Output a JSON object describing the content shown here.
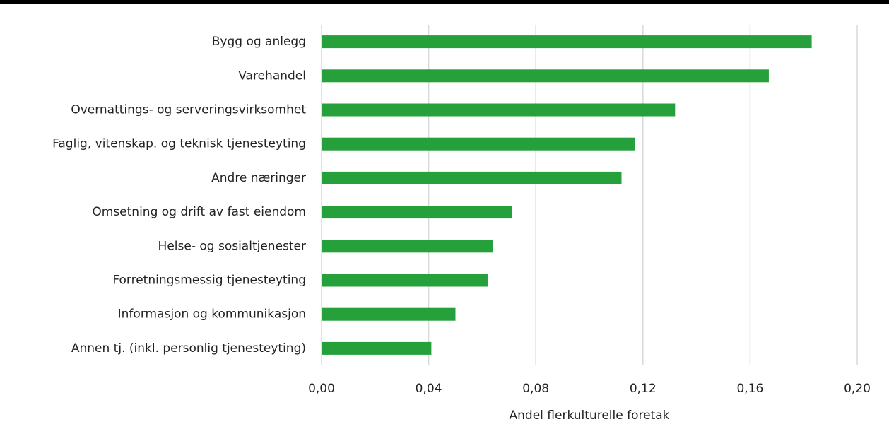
{
  "chart_data": {
    "type": "barh",
    "x_label": "Andel flerkulturelle foretak",
    "categories": [
      "Bygg og anlegg",
      "Varehandel",
      "Overnattings- og serveringsvirksomhet",
      "Faglig, vitenskap. og teknisk tjenesteyting",
      "Andre næringer",
      "Omsetning og drift av fast eiendom",
      "Helse- og sosialtjenester",
      "Forretningsmessig tjenesteyting",
      "Informasjon og kommunikasjon",
      "Annen tj. (inkl. personlig tjenesteyting)"
    ],
    "values": [
      0.183,
      0.167,
      0.132,
      0.117,
      0.112,
      0.071,
      0.064,
      0.062,
      0.05,
      0.041
    ],
    "color": "#26a03a",
    "xlim": [
      0,
      0.2
    ],
    "xticks": [
      {
        "value": 0,
        "label": "0,00"
      },
      {
        "value": 0.04,
        "label": "0,04"
      },
      {
        "value": 0.08,
        "label": "0,08"
      },
      {
        "value": 0.12,
        "label": "0,12"
      },
      {
        "value": 0.16,
        "label": "0,16"
      },
      {
        "value": 0.2,
        "label": "0,20"
      }
    ],
    "grid": true
  }
}
